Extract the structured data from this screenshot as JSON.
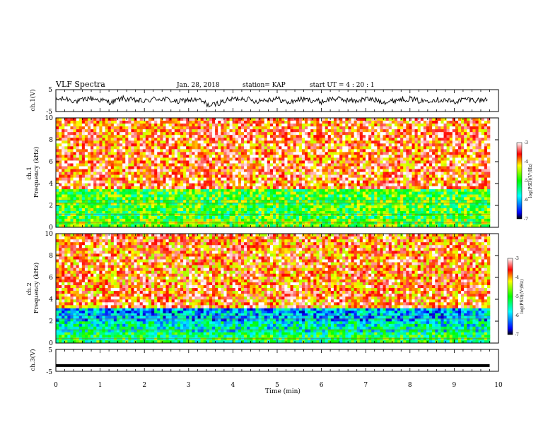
{
  "header": {
    "title": "VLF Spectra",
    "date": "Jan. 28, 2018",
    "station": "station= KAP",
    "start_ut": "start  UT =   4 : 20 : 1"
  },
  "chart_data": [
    {
      "type": "line",
      "panel": "ch1-waveform",
      "ylabel": "ch.1(V)",
      "yticks": [
        "5",
        "-5"
      ],
      "ylim": [
        -5,
        5
      ],
      "xlim": [
        0,
        10
      ],
      "series": [
        {
          "x": [
            0,
            0.25,
            0.5,
            0.75,
            1.0,
            1.25,
            1.5,
            1.75,
            2.0,
            2.25,
            2.5,
            2.75,
            3.0,
            3.25,
            3.5,
            3.75,
            4.0,
            4.25,
            4.5,
            4.75,
            5.0,
            5.25,
            5.5,
            5.75,
            6.0,
            6.25,
            6.5,
            6.75,
            7.0,
            7.25,
            7.5,
            7.75,
            8.0,
            8.25,
            8.5,
            8.75,
            9.0,
            9.25,
            9.5,
            9.75
          ],
          "values": [
            0.5,
            0.8,
            -0.5,
            1.2,
            0.3,
            -0.8,
            1.0,
            0.2,
            -0.4,
            0.9,
            0.6,
            -0.6,
            0.4,
            0.1,
            -2.5,
            -0.5,
            0.7,
            1.1,
            -0.3,
            0.5,
            0.9,
            -1.0,
            0.6,
            0.3,
            -0.5,
            1.0,
            0.4,
            -0.2,
            0.8,
            0.2,
            -0.7,
            0.6,
            0.9,
            -0.4,
            0.5,
            0.3,
            -0.6,
            0.7,
            0.2,
            0.4
          ]
        }
      ]
    },
    {
      "type": "heatmap",
      "panel": "ch1-spectrogram",
      "ylabel": "ch.1\nFrequency (kHz)",
      "yticks": [
        "0",
        "2",
        "4",
        "6",
        "8",
        "10"
      ],
      "ylim": [
        0,
        10
      ],
      "xlim": [
        0,
        10
      ],
      "colorbar": {
        "ticks": [
          "-3",
          "-4",
          "-5",
          "-6",
          "-7"
        ],
        "label": "log(PSD)(V²/Hz)",
        "range": [
          -7,
          -3
        ]
      },
      "bands_khz": [
        {
          "range": [
            0,
            0.8
          ],
          "level": -4.8
        },
        {
          "range": [
            0.8,
            1.5
          ],
          "level": -5.0
        },
        {
          "range": [
            1.5,
            3.5
          ],
          "level": -4.9
        },
        {
          "range": [
            3.5,
            10
          ],
          "level": -3.6
        }
      ]
    },
    {
      "type": "heatmap",
      "panel": "ch2-spectrogram",
      "ylabel": "ch.2\nFrequency (kHz)",
      "yticks": [
        "0",
        "2",
        "4",
        "6",
        "8",
        "10"
      ],
      "ylim": [
        0,
        10
      ],
      "xlim": [
        0,
        10
      ],
      "colorbar": {
        "ticks": [
          "-3",
          "-4",
          "-5",
          "-6",
          "-7"
        ],
        "label": "log(PSD)(V²/Hz)",
        "range": [
          -7,
          -3
        ]
      },
      "bands_khz": [
        {
          "range": [
            0,
            1.0
          ],
          "level": -5.2
        },
        {
          "range": [
            1.0,
            2.0
          ],
          "level": -5.6
        },
        {
          "range": [
            2.0,
            3.2
          ],
          "level": -6.0
        },
        {
          "range": [
            3.2,
            10
          ],
          "level": -3.7
        }
      ]
    },
    {
      "type": "line",
      "panel": "ch3-waveform",
      "ylabel": "ch.3(V)",
      "yticks": [
        "5",
        "-5"
      ],
      "ylim": [
        -5,
        5
      ],
      "xlim": [
        0,
        10
      ],
      "xlabel": "Time (min)",
      "xticks": [
        "0",
        "1",
        "2",
        "3",
        "4",
        "5",
        "6",
        "7",
        "8",
        "9",
        "10"
      ],
      "series": [
        {
          "x": [
            0,
            9.8
          ],
          "values": [
            -2.4,
            -2.4
          ]
        }
      ]
    }
  ]
}
